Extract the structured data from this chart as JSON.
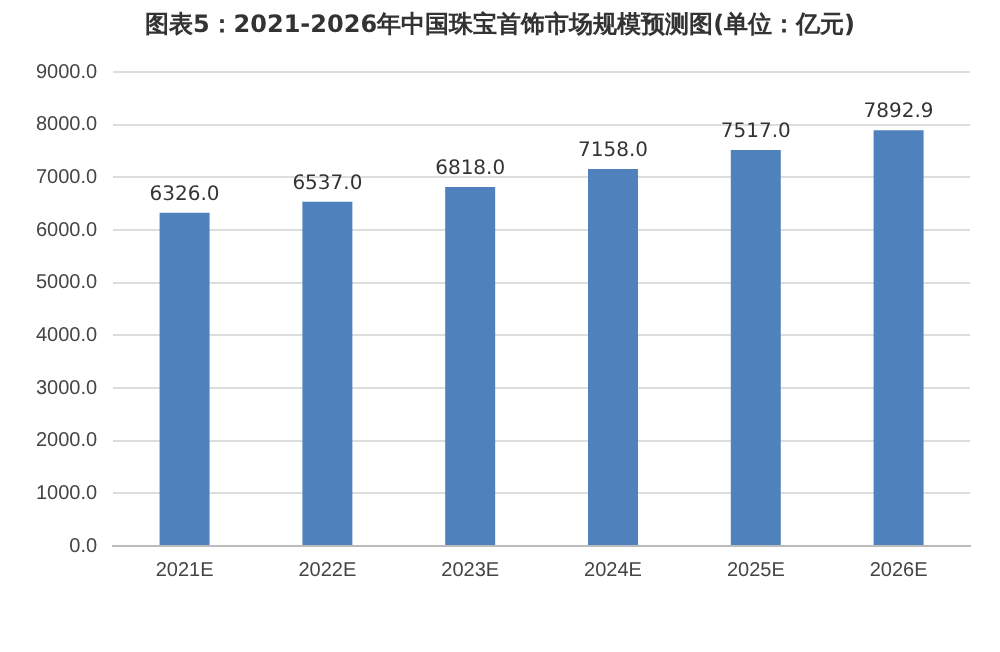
{
  "chart_data": {
    "type": "bar",
    "title": "图表5：2021-2026年中国珠宝首饰市场规模预测图(单位：亿元)",
    "categories": [
      "2021E",
      "2022E",
      "2023E",
      "2024E",
      "2025E",
      "2026E"
    ],
    "values": [
      6326.0,
      6537.0,
      6818.0,
      7158.0,
      7517.0,
      7892.9
    ],
    "value_labels": [
      "6326.0",
      "6537.0",
      "6818.0",
      "7158.0",
      "7517.0",
      "7892.9"
    ],
    "color": "#4f81bd",
    "ylim": [
      0,
      9000
    ],
    "yticks": [
      {
        "value": 0,
        "label": "0.0"
      },
      {
        "value": 1000,
        "label": "1000.0"
      },
      {
        "value": 2000,
        "label": "2000.0"
      },
      {
        "value": 3000,
        "label": "3000.0"
      },
      {
        "value": 4000,
        "label": "4000.0"
      },
      {
        "value": 5000,
        "label": "5000.0"
      },
      {
        "value": 6000,
        "label": "6000.0"
      },
      {
        "value": 7000,
        "label": "7000.0"
      },
      {
        "value": 8000,
        "label": "8000.0"
      },
      {
        "value": 9000,
        "label": "9000.0"
      }
    ],
    "grid": "y"
  }
}
